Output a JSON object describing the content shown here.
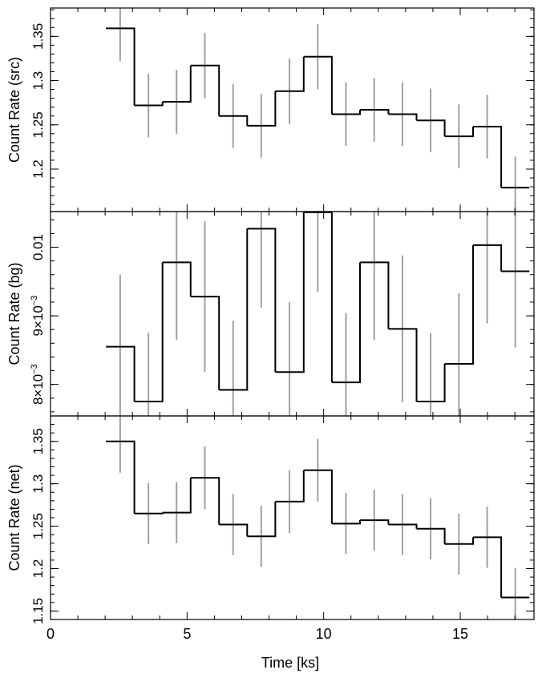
{
  "chart_data": {
    "type": "line",
    "xlabel": "Time [ks]",
    "xlim": [
      0,
      17.7
    ],
    "x_ticks": [
      0,
      5,
      10,
      15
    ],
    "x_tick_labels": [
      "0",
      "5",
      "10",
      "15"
    ],
    "colors": {
      "step": "#000000",
      "errorbar": "#a0a0a0",
      "axes": "#000000"
    },
    "panels": [
      {
        "name": "src",
        "ylabel": "Count Rate (src)",
        "ylim": [
          1.152,
          1.382
        ],
        "y_ticks": [
          1.2,
          1.25,
          1.3,
          1.35
        ],
        "y_tick_labels": [
          "1.2",
          "1.25",
          "1.3",
          "1.35"
        ],
        "bins": [
          {
            "x0": 2.03,
            "x1": 3.07,
            "y": 1.359,
            "err": 0.037
          },
          {
            "x0": 3.07,
            "x1": 4.1,
            "y": 1.272,
            "err": 0.036
          },
          {
            "x0": 4.1,
            "x1": 5.13,
            "y": 1.276,
            "err": 0.036
          },
          {
            "x0": 5.13,
            "x1": 6.17,
            "y": 1.317,
            "err": 0.037
          },
          {
            "x0": 6.17,
            "x1": 7.2,
            "y": 1.26,
            "err": 0.036
          },
          {
            "x0": 7.2,
            "x1": 8.23,
            "y": 1.249,
            "err": 0.036
          },
          {
            "x0": 8.23,
            "x1": 9.27,
            "y": 1.288,
            "err": 0.037
          },
          {
            "x0": 9.27,
            "x1": 10.3,
            "y": 1.327,
            "err": 0.037
          },
          {
            "x0": 10.3,
            "x1": 11.33,
            "y": 1.262,
            "err": 0.036
          },
          {
            "x0": 11.33,
            "x1": 12.37,
            "y": 1.267,
            "err": 0.036
          },
          {
            "x0": 12.37,
            "x1": 13.4,
            "y": 1.262,
            "err": 0.036
          },
          {
            "x0": 13.4,
            "x1": 14.43,
            "y": 1.255,
            "err": 0.036
          },
          {
            "x0": 14.43,
            "x1": 15.47,
            "y": 1.237,
            "err": 0.036
          },
          {
            "x0": 15.47,
            "x1": 16.5,
            "y": 1.248,
            "err": 0.036
          },
          {
            "x0": 16.5,
            "x1": 17.53,
            "y": 1.179,
            "err": 0.035
          }
        ]
      },
      {
        "name": "bg",
        "ylabel": "Count Rate (bg)",
        "ylim": [
          0.00754,
          0.01052
        ],
        "y_ticks": [
          0.008,
          0.009,
          0.01
        ],
        "y_tick_labels": [
          {
            "mantissa": "8×10",
            "exp": "−3"
          },
          {
            "mantissa": "9×10",
            "exp": "−3"
          },
          {
            "mantissa": "0.01",
            "exp": ""
          }
        ],
        "bins": [
          {
            "x0": 2.03,
            "x1": 3.07,
            "y": 0.00855,
            "err": 0.00105
          },
          {
            "x0": 3.07,
            "x1": 4.1,
            "y": 0.00775,
            "err": 0.001
          },
          {
            "x0": 4.1,
            "x1": 5.13,
            "y": 0.00978,
            "err": 0.00113
          },
          {
            "x0": 5.13,
            "x1": 6.17,
            "y": 0.00928,
            "err": 0.0011
          },
          {
            "x0": 6.17,
            "x1": 7.2,
            "y": 0.00792,
            "err": 0.00101
          },
          {
            "x0": 7.2,
            "x1": 8.23,
            "y": 0.01027,
            "err": 0.00115
          },
          {
            "x0": 8.23,
            "x1": 9.27,
            "y": 0.00818,
            "err": 0.00102
          },
          {
            "x0": 9.27,
            "x1": 10.3,
            "y": 0.01051,
            "err": 0.00116
          },
          {
            "x0": 10.3,
            "x1": 11.33,
            "y": 0.00803,
            "err": 0.00101
          },
          {
            "x0": 11.33,
            "x1": 12.37,
            "y": 0.00978,
            "err": 0.00113
          },
          {
            "x0": 12.37,
            "x1": 13.4,
            "y": 0.00881,
            "err": 0.00107
          },
          {
            "x0": 13.4,
            "x1": 14.43,
            "y": 0.00775,
            "err": 0.001
          },
          {
            "x0": 14.43,
            "x1": 15.47,
            "y": 0.0083,
            "err": 0.00103
          },
          {
            "x0": 15.47,
            "x1": 16.5,
            "y": 0.01003,
            "err": 0.00114
          },
          {
            "x0": 16.5,
            "x1": 17.53,
            "y": 0.00965,
            "err": 0.00111
          }
        ]
      },
      {
        "name": "net",
        "ylabel": "Count Rate (net)",
        "ylim": [
          1.14,
          1.38
        ],
        "y_ticks": [
          1.15,
          1.2,
          1.25,
          1.3,
          1.35
        ],
        "y_tick_labels": [
          "1.15",
          "1.2",
          "1.25",
          "1.3",
          "1.35"
        ],
        "bins": [
          {
            "x0": 2.03,
            "x1": 3.07,
            "y": 1.35,
            "err": 0.037
          },
          {
            "x0": 3.07,
            "x1": 4.1,
            "y": 1.265,
            "err": 0.036
          },
          {
            "x0": 4.1,
            "x1": 5.13,
            "y": 1.266,
            "err": 0.036
          },
          {
            "x0": 5.13,
            "x1": 6.17,
            "y": 1.307,
            "err": 0.037
          },
          {
            "x0": 6.17,
            "x1": 7.2,
            "y": 1.252,
            "err": 0.036
          },
          {
            "x0": 7.2,
            "x1": 8.23,
            "y": 1.238,
            "err": 0.036
          },
          {
            "x0": 8.23,
            "x1": 9.27,
            "y": 1.279,
            "err": 0.037
          },
          {
            "x0": 9.27,
            "x1": 10.3,
            "y": 1.316,
            "err": 0.037
          },
          {
            "x0": 10.3,
            "x1": 11.33,
            "y": 1.253,
            "err": 0.036
          },
          {
            "x0": 11.33,
            "x1": 12.37,
            "y": 1.257,
            "err": 0.036
          },
          {
            "x0": 12.37,
            "x1": 13.4,
            "y": 1.252,
            "err": 0.036
          },
          {
            "x0": 13.4,
            "x1": 14.43,
            "y": 1.247,
            "err": 0.036
          },
          {
            "x0": 14.43,
            "x1": 15.47,
            "y": 1.229,
            "err": 0.036
          },
          {
            "x0": 15.47,
            "x1": 16.5,
            "y": 1.237,
            "err": 0.036
          },
          {
            "x0": 16.5,
            "x1": 17.53,
            "y": 1.166,
            "err": 0.035
          }
        ]
      }
    ]
  }
}
